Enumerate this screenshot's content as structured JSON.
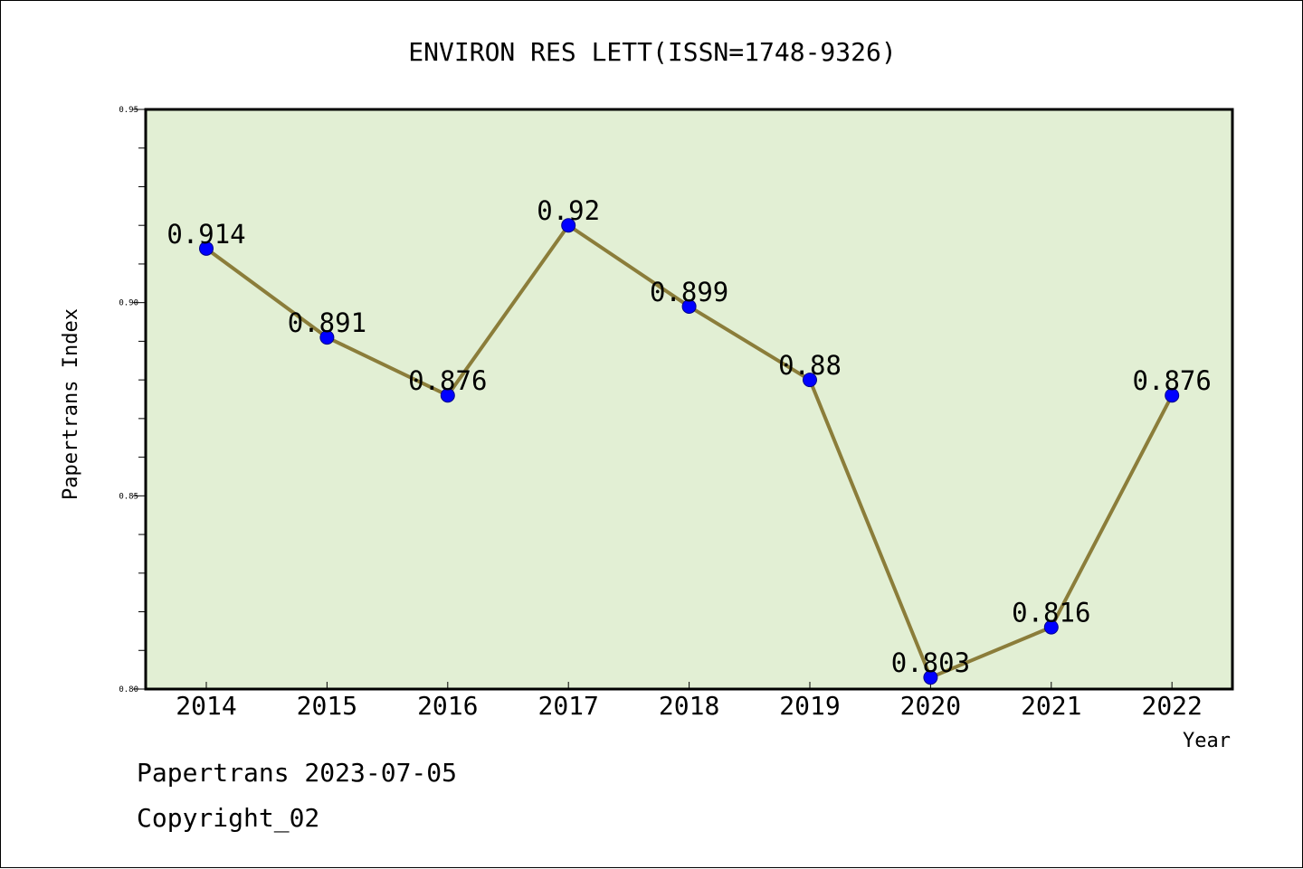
{
  "chart_data": {
    "type": "line",
    "title": "ENVIRON RES LETT(ISSN=1748-9326)",
    "xlabel": "Year",
    "ylabel": "Papertrans Index",
    "categories": [
      "2014",
      "2015",
      "2016",
      "2017",
      "2018",
      "2019",
      "2020",
      "2021",
      "2022"
    ],
    "values": [
      0.914,
      0.891,
      0.876,
      0.92,
      0.899,
      0.88,
      0.803,
      0.816,
      0.876
    ],
    "data_labels": [
      "0.914",
      "0.891",
      "0.876",
      "0.92",
      "0.899",
      "0.88",
      "0.803",
      "0.816",
      "0.876"
    ],
    "ylim": [
      0.8,
      0.95
    ],
    "yticks": [
      "0.80",
      "0.85",
      "0.90",
      "0.95"
    ],
    "grid": false,
    "colors": {
      "plot_bg": "#e2efd4",
      "line": "#8b7d3a",
      "marker": "#0000ff"
    }
  },
  "footer": {
    "line1": "Papertrans 2023-07-05",
    "line2": "Copyright_02"
  }
}
